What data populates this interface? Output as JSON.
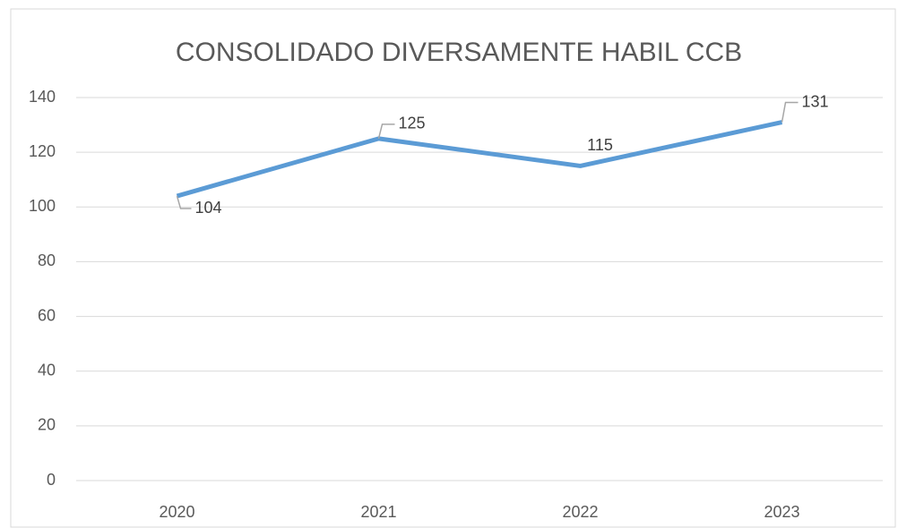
{
  "chart_data": {
    "type": "line",
    "title": "CONSOLIDADO DIVERSAMENTE HABIL CCB",
    "categories": [
      "2020",
      "2021",
      "2022",
      "2023"
    ],
    "series": [
      {
        "color": "#5b9bd5",
        "values": [
          104,
          125,
          115,
          131
        ]
      }
    ],
    "ylim": [
      0,
      140
    ],
    "yticks": [
      0,
      20,
      40,
      60,
      80,
      100,
      120,
      140
    ],
    "grid": true
  }
}
